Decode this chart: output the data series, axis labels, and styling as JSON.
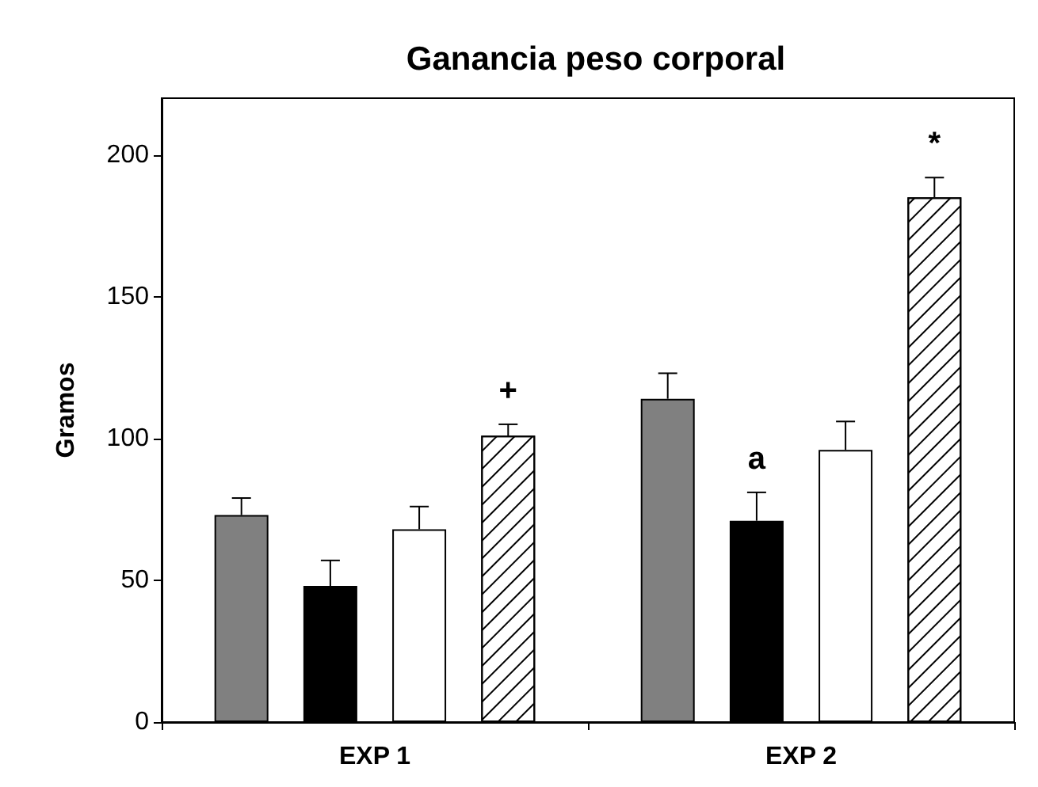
{
  "chart_data": {
    "type": "bar",
    "title": "Ganancia peso corporal",
    "ylabel": "Gramos",
    "categories": [
      "EXP 1",
      "EXP 2"
    ],
    "series": [
      {
        "color": "#808080",
        "values": [
          73,
          114
        ],
        "errors": [
          6,
          9
        ]
      },
      {
        "color": "#000000",
        "values": [
          48,
          71
        ],
        "errors": [
          9,
          10
        ],
        "value_labels": [
          null,
          "a"
        ]
      },
      {
        "color": "#ffffff",
        "values": [
          68,
          96
        ],
        "errors": [
          8,
          10
        ]
      },
      {
        "color": "#ffffff",
        "values": [
          101,
          185
        ],
        "errors": [
          4,
          7
        ],
        "value_labels": [
          "+",
          "*"
        ]
      }
    ],
    "ylim": [
      0,
      220
    ],
    "yticks": [
      0,
      50,
      100,
      150,
      200
    ],
    "grid": false
  }
}
